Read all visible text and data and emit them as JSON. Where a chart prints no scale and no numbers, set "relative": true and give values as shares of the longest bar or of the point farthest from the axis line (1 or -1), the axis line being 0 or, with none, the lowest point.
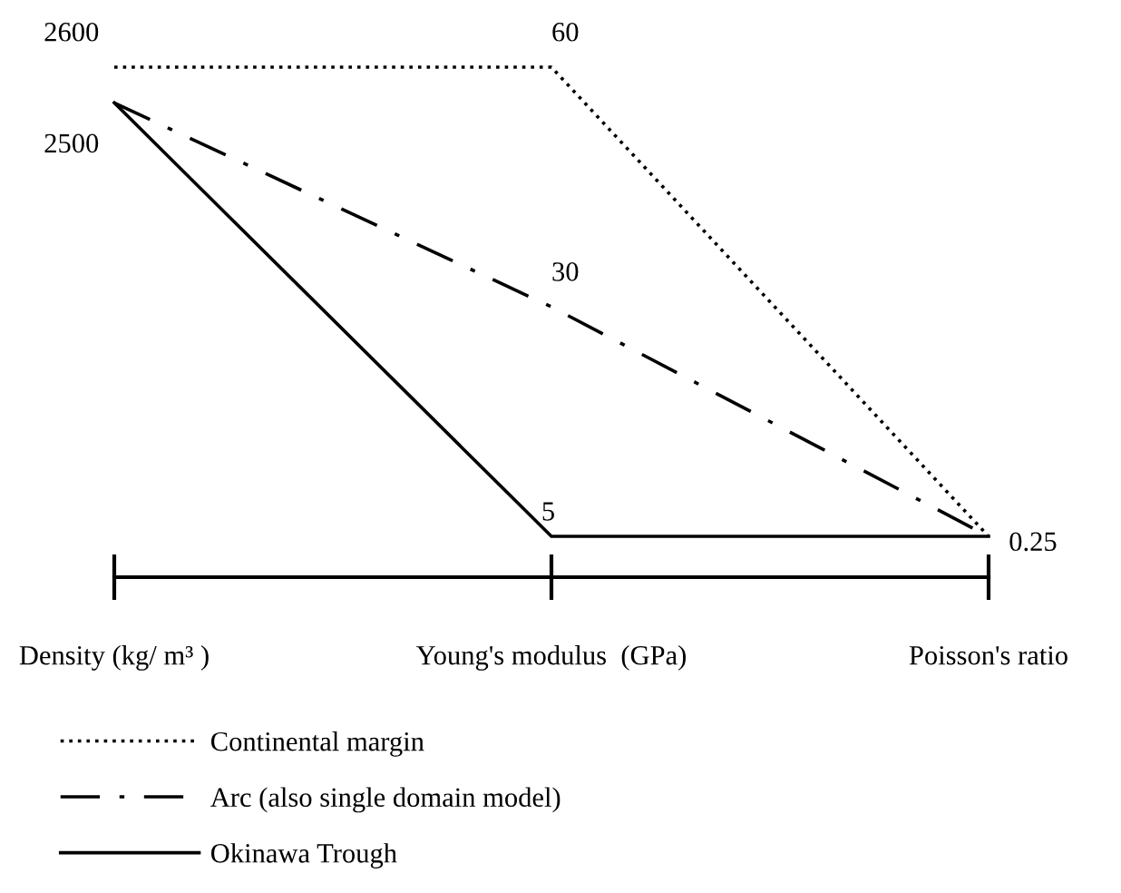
{
  "chart_data": {
    "type": "line",
    "relative": true,
    "categories": [
      "Density (kg/ m³ )",
      "Young's modulus  (GPa)",
      "Poisson's ratio"
    ],
    "series": [
      {
        "name": "Continental margin",
        "color": "#000000",
        "line_style": "dotted",
        "values": [
          1,
          1,
          0.08
        ]
      },
      {
        "name": "Arc (also single domain model)",
        "color": "#000000",
        "line_style": "dashdot",
        "values": [
          0.93,
          0.53,
          0.08
        ]
      },
      {
        "name": "Okinawa Trough",
        "color": "#000000",
        "line_style": "solid",
        "values": [
          0.93,
          0.08,
          0.08
        ]
      }
    ],
    "annotations": [
      {
        "text": "2600",
        "x": "Density (kg/ m³ )",
        "y": 1
      },
      {
        "text": "2500",
        "x": "Density (kg/ m³ )",
        "y": 0.93
      },
      {
        "text": "60",
        "x": "Young's modulus  (GPa)",
        "y": 1
      },
      {
        "text": "30",
        "x": "Young's modulus  (GPa)",
        "y": 0.53
      },
      {
        "text": "5",
        "x": "Young's modulus  (GPa)",
        "y": 0.08
      },
      {
        "text": "0.25",
        "x": "Poisson's ratio",
        "y": 0.08
      }
    ],
    "legend": "bottom left",
    "grid": false,
    "marker": "none"
  }
}
